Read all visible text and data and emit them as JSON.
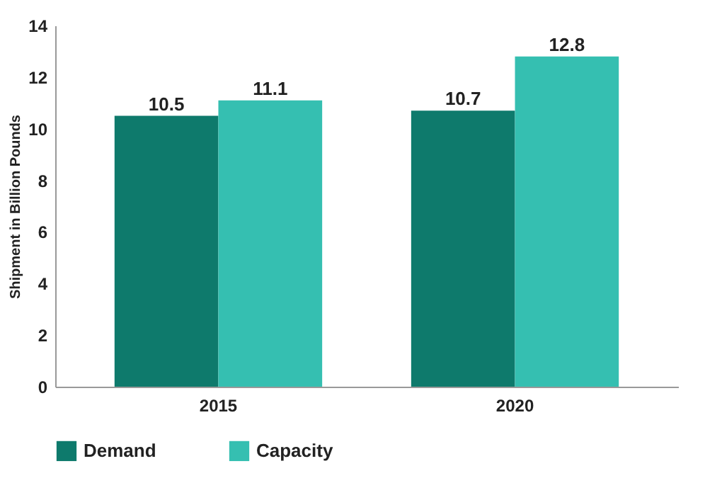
{
  "chart_data": {
    "type": "bar",
    "ylabel": "Shipment in Billion Pounds",
    "categories": [
      "2015",
      "2020"
    ],
    "series": [
      {
        "name": "Demand",
        "color": "#0e7a6c",
        "values": [
          10.5,
          10.7
        ]
      },
      {
        "name": "Capacity",
        "color": "#35bfb1",
        "values": [
          11.1,
          12.8
        ]
      }
    ],
    "ylim": [
      0,
      14
    ],
    "yticks": [
      0,
      2,
      4,
      6,
      8,
      10,
      12,
      14
    ],
    "grid": false,
    "legend": "bottom",
    "data_labels": true
  }
}
